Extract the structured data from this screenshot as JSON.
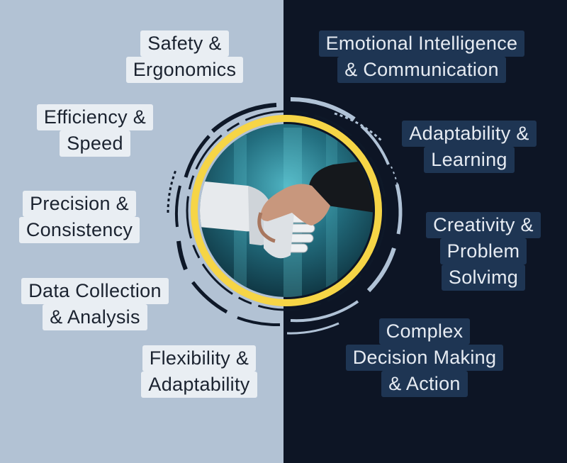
{
  "colors": {
    "left_bg": "#b2c2d4",
    "right_bg": "#0d1525",
    "left_label_bg": "#e9eef3",
    "right_label_bg": "#1e3553",
    "ring_yellow": "#f6d546",
    "ring_light": "#b0c2d6",
    "ring_dark": "#0e1828",
    "scene_glow": "#2e8a9b"
  },
  "icons": {
    "center_image": "robot-human-handshake-icon"
  },
  "human_strengths": [
    {
      "lines": [
        "Emotional Intelligence",
        "& Communication"
      ]
    },
    {
      "lines": [
        "Adaptability &",
        "Learning"
      ]
    },
    {
      "lines": [
        "Creativity &",
        "Problem",
        "Solvimg"
      ]
    },
    {
      "lines": [
        "Complex",
        "Decision Making",
        "& Action"
      ]
    }
  ],
  "robot_strengths": [
    {
      "lines": [
        "Safety &",
        "Ergonomics"
      ]
    },
    {
      "lines": [
        "Efficiency &",
        "Speed"
      ]
    },
    {
      "lines": [
        "Precision &",
        "Consistency"
      ]
    },
    {
      "lines": [
        "Data Collection",
        "& Analysis"
      ]
    },
    {
      "lines": [
        "Flexibility &",
        "Adaptability"
      ]
    }
  ]
}
